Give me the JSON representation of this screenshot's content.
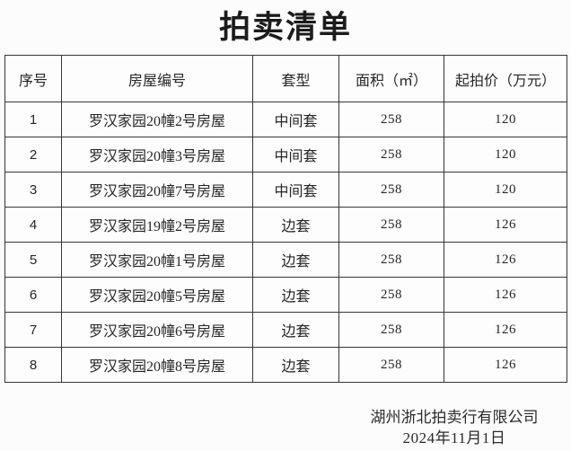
{
  "title": "拍卖清单",
  "table": {
    "headers": [
      "序号",
      "房屋编号",
      "套型",
      "面积（㎡）",
      "起拍价（万元）"
    ],
    "rows": [
      [
        "1",
        "罗汉家园20幢2号房屋",
        "中间套",
        "258",
        "120"
      ],
      [
        "2",
        "罗汉家园20幢3号房屋",
        "中间套",
        "258",
        "120"
      ],
      [
        "3",
        "罗汉家园20幢7号房屋",
        "中间套",
        "258",
        "120"
      ],
      [
        "4",
        "罗汉家园19幢2号房屋",
        "边套",
        "258",
        "126"
      ],
      [
        "5",
        "罗汉家园20幢1号房屋",
        "边套",
        "258",
        "126"
      ],
      [
        "6",
        "罗汉家园20幢5号房屋",
        "边套",
        "258",
        "126"
      ],
      [
        "7",
        "罗汉家园20幢6号房屋",
        "边套",
        "258",
        "126"
      ],
      [
        "8",
        "罗汉家园20幢8号房屋",
        "边套",
        "258",
        "126"
      ]
    ]
  },
  "footer": {
    "company": "湖州浙北拍卖行有限公司",
    "date": "2024年11月1日"
  },
  "colors": {
    "text": "#262626",
    "border": "#363636",
    "background": "#fcfcfc"
  }
}
